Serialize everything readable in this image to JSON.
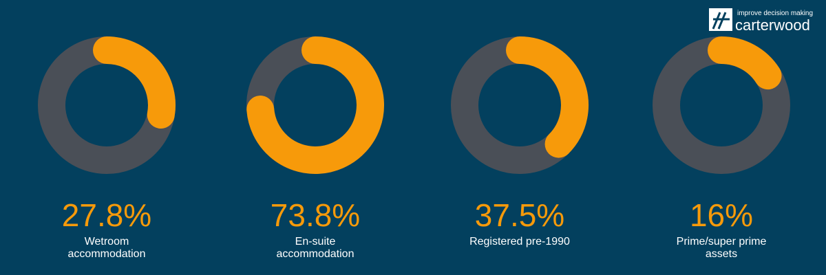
{
  "chart_data": [
    {
      "type": "donut",
      "title": "Wetroom accommodation",
      "values": [
        27.8
      ],
      "value_labels": [
        "27.8%"
      ],
      "color": "#f79a0a",
      "track_color": "#4a4f57"
    },
    {
      "type": "donut",
      "title": "En-suite accommodation",
      "values": [
        73.8
      ],
      "value_labels": [
        "73.8%"
      ],
      "color": "#f79a0a",
      "track_color": "#4a4f57"
    },
    {
      "type": "donut",
      "title": "Registered pre-1990",
      "values": [
        37.5
      ],
      "value_labels": [
        "37.5%"
      ],
      "color": "#f79a0a",
      "track_color": "#4a4f57"
    },
    {
      "type": "donut",
      "title": "Prime/super prime assets",
      "values": [
        16
      ],
      "value_labels": [
        "16%"
      ],
      "color": "#f79a0a",
      "track_color": "#4a4f57"
    }
  ],
  "logo": {
    "tagline": "improve decision making",
    "name": "carterwood"
  }
}
